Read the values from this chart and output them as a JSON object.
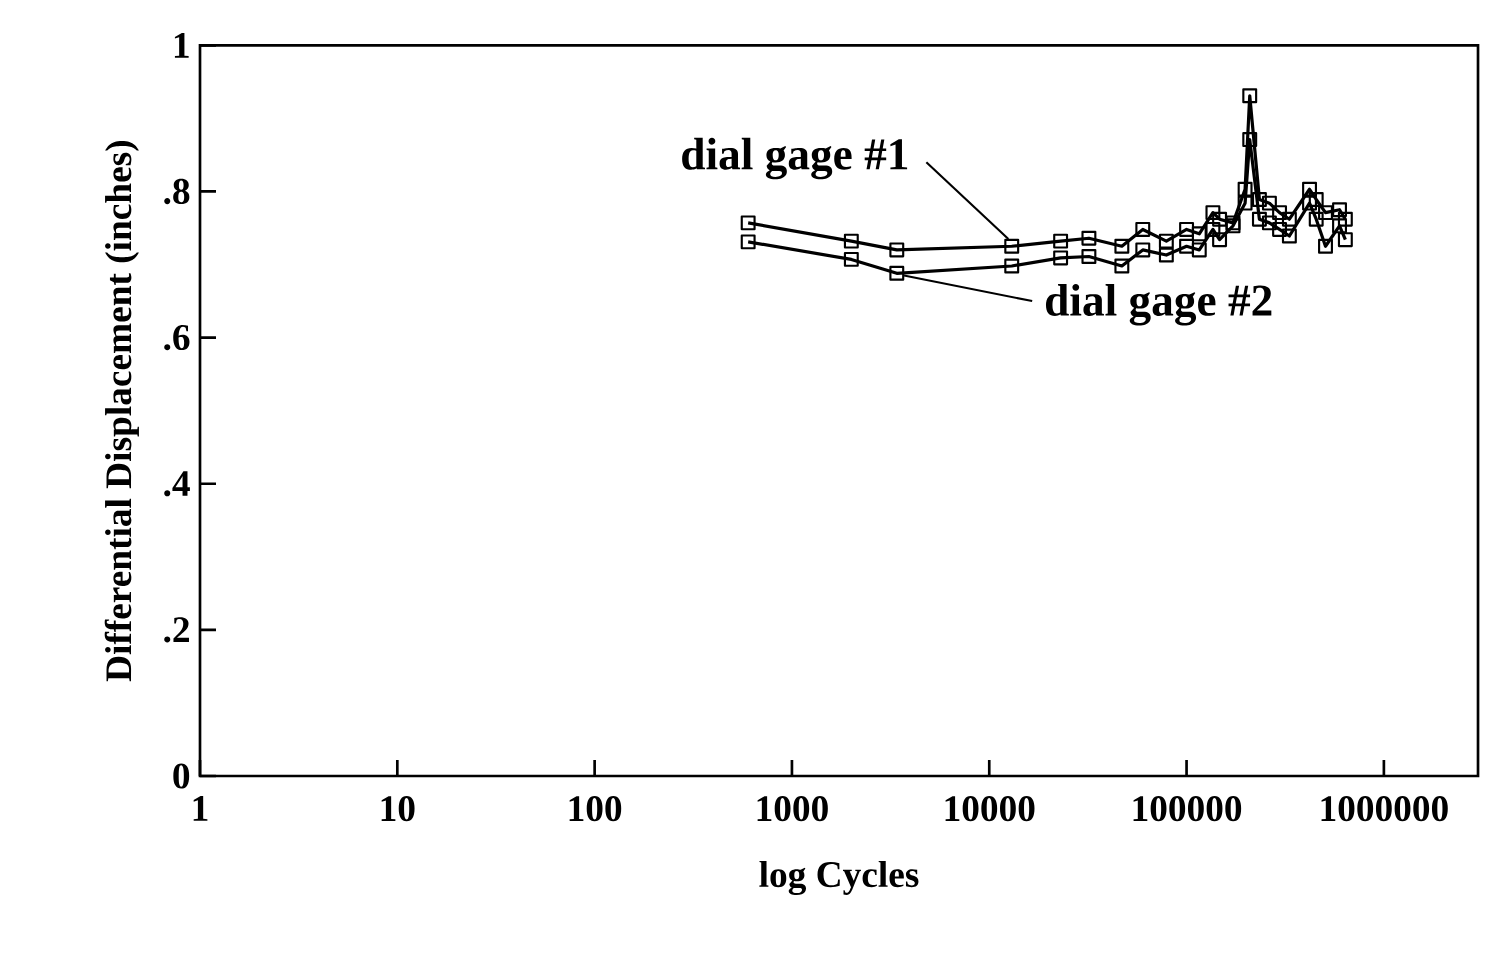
{
  "chart_data": {
    "type": "line",
    "xlabel": "log Cycles",
    "ylabel": "Differential Displacement (inches)",
    "log": "x",
    "xlim": [
      1,
      3000000
    ],
    "ylim": [
      0,
      1
    ],
    "xticks": [
      1,
      10,
      100,
      1000,
      10000,
      100000,
      1000000
    ],
    "yticks": [
      0,
      {
        "value": 0.2,
        "label": ".2"
      },
      {
        "value": 0.4,
        "label": ".4"
      },
      {
        "value": 0.6,
        "label": ".6"
      },
      {
        "value": 0.8,
        "label": ".8"
      },
      1
    ],
    "grid": false,
    "legend": "right",
    "marker": "square",
    "line_style": "solid",
    "series": [
      {
        "name": "dial gage #1",
        "color": "#000000",
        "x": [
          600,
          2000,
          3400,
          13000,
          23000,
          32000,
          47000,
          60000,
          79000,
          100000,
          116000,
          136000,
          147000,
          172000,
          198000,
          209000,
          234000,
          263000,
          296000,
          332000,
          420000,
          454000,
          506000,
          596000,
          638000
        ],
        "values": [
          0.757,
          0.732,
          0.72,
          0.725,
          0.732,
          0.736,
          0.725,
          0.748,
          0.732,
          0.748,
          0.742,
          0.771,
          0.762,
          0.757,
          0.803,
          0.931,
          0.789,
          0.784,
          0.771,
          0.762,
          0.803,
          0.789,
          0.771,
          0.775,
          0.762
        ]
      },
      {
        "name": "dial gage #2",
        "color": "#000000",
        "x": [
          600,
          2000,
          3400,
          13000,
          23000,
          32000,
          47000,
          60000,
          79000,
          100000,
          116000,
          136000,
          147000,
          172000,
          198000,
          209000,
          234000,
          263000,
          296000,
          332000,
          420000,
          454000,
          506000,
          596000,
          638000
        ],
        "values": [
          0.731,
          0.707,
          0.688,
          0.698,
          0.709,
          0.711,
          0.698,
          0.72,
          0.713,
          0.725,
          0.72,
          0.748,
          0.734,
          0.753,
          0.784,
          0.871,
          0.762,
          0.757,
          0.748,
          0.739,
          0.784,
          0.762,
          0.725,
          0.753,
          0.734
        ]
      }
    ]
  }
}
